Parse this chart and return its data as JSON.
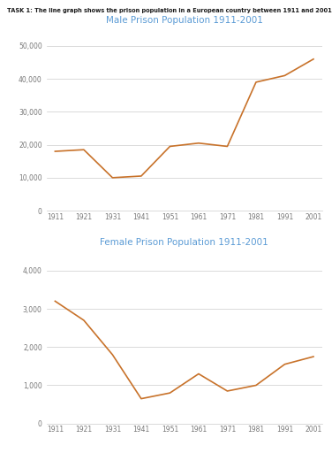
{
  "task_text": "TASK 1: The line graph shows the prison population in a European country between 1911 and 2001.",
  "years": [
    1911,
    1921,
    1931,
    1941,
    1951,
    1961,
    1971,
    1981,
    1991,
    2001
  ],
  "male_values": [
    18000,
    18500,
    10000,
    10500,
    19500,
    20500,
    19500,
    39000,
    41000,
    46000
  ],
  "female_values": [
    3200,
    2700,
    1800,
    650,
    800,
    1300,
    850,
    1000,
    1550,
    1750
  ],
  "male_title": "Male Prison Population 1911-2001",
  "female_title": "Female Prison Population 1911-2001",
  "line_color": "#C8722A",
  "title_color": "#5B9BD5",
  "task_color": "#1A1A1A",
  "male_ylim": [
    0,
    55000
  ],
  "male_yticks": [
    0,
    10000,
    20000,
    30000,
    40000,
    50000
  ],
  "female_ylim": [
    0,
    4500
  ],
  "female_yticks": [
    0,
    1000,
    2000,
    3000,
    4000
  ],
  "bg_color": "#FFFFFF",
  "grid_color": "#CCCCCC"
}
